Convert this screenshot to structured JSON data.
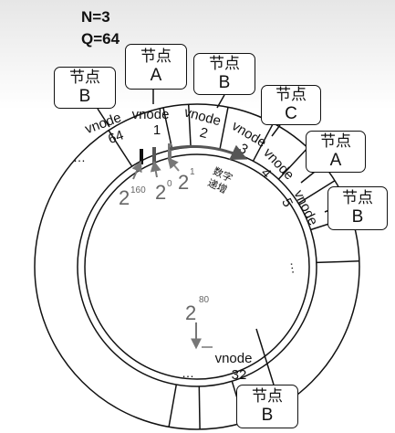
{
  "params": {
    "n": "N=3",
    "q": "Q=64"
  },
  "vnodes": [
    {
      "id": "vnode-1",
      "label": "vnode",
      "num": "1"
    },
    {
      "id": "vnode-2",
      "label": "vnode",
      "num": "2"
    },
    {
      "id": "vnode-3",
      "label": "vnode",
      "num": "3"
    },
    {
      "id": "vnode-4",
      "label": "vnode",
      "num": "4"
    },
    {
      "id": "vnode-5",
      "label": "vnode",
      "num": "5"
    },
    {
      "id": "vnode-32",
      "label": "vnode",
      "num": "32"
    },
    {
      "id": "vnode-64",
      "label": "vnode",
      "num": "64"
    }
  ],
  "nodes": [
    {
      "prefix": "节点",
      "letter": "B"
    },
    {
      "prefix": "节点",
      "letter": "A"
    },
    {
      "prefix": "节点",
      "letter": "B"
    },
    {
      "prefix": "节点",
      "letter": "C"
    },
    {
      "prefix": "节点",
      "letter": "A"
    },
    {
      "prefix": "节点",
      "letter": "B"
    },
    {
      "prefix": "节点",
      "letter": "B"
    }
  ],
  "ellipsis": "…",
  "hash_points": [
    {
      "base": "2",
      "exp": "160"
    },
    {
      "base": "2",
      "exp": "0"
    },
    {
      "base": "2",
      "exp": "1"
    },
    {
      "base": "2",
      "exp": "80"
    }
  ],
  "increase_label": {
    "line1": "数字",
    "line2": "递增"
  }
}
